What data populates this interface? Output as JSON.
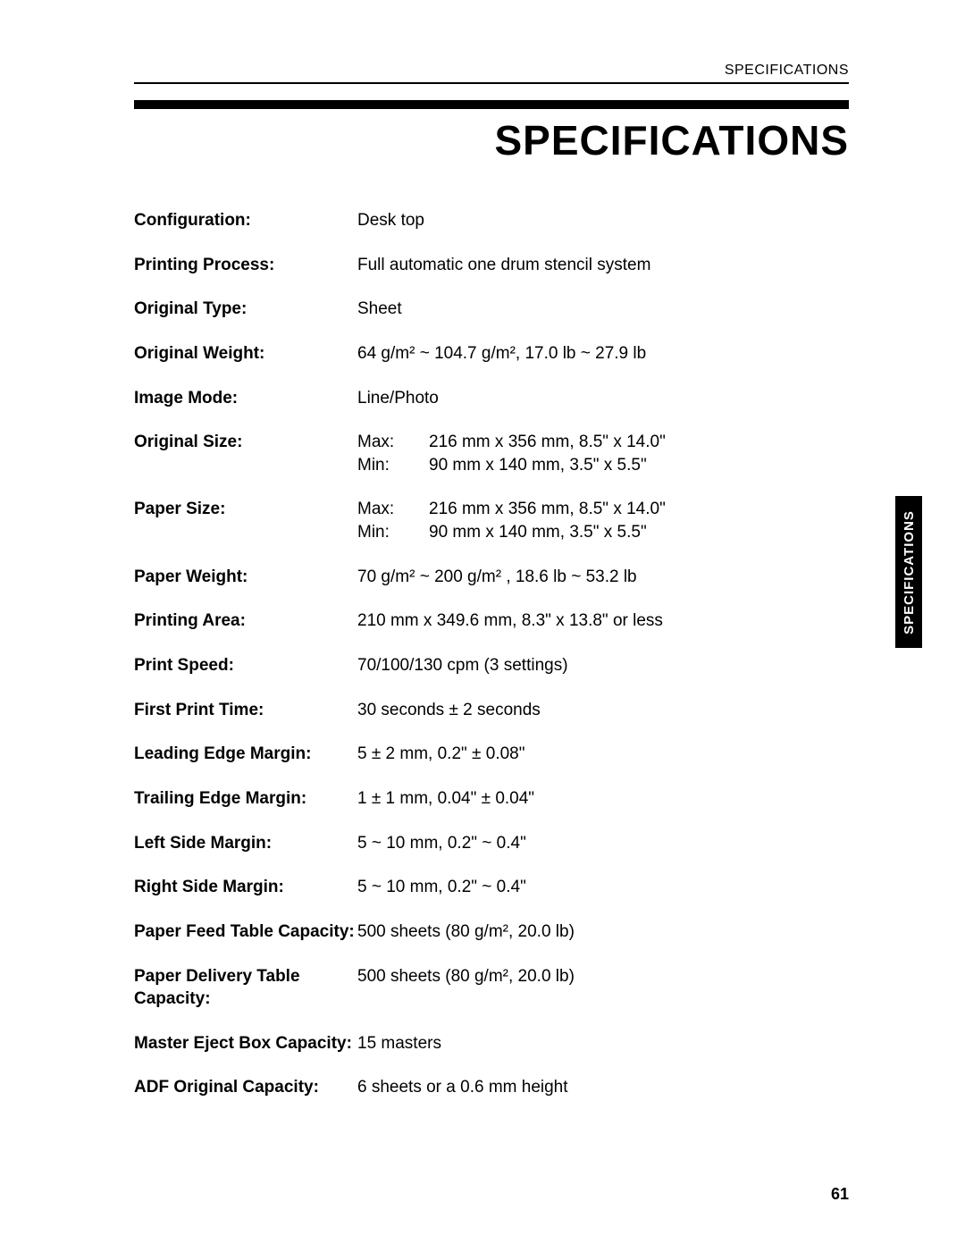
{
  "header": {
    "top_label": "SPECIFICATIONS",
    "title": "SPECIFICATIONS"
  },
  "side_tab": "SPECIFICATIONS",
  "page_number": "61",
  "specs": {
    "configuration": {
      "label": "Configuration:",
      "value": "Desk top"
    },
    "printing_process": {
      "label": "Printing Process:",
      "value": "Full automatic one drum stencil system"
    },
    "original_type": {
      "label": "Original Type:",
      "value": "Sheet"
    },
    "original_weight": {
      "label": "Original Weight:",
      "value": "64 g/m² ~ 104.7 g/m², 17.0 lb ~ 27.9 lb"
    },
    "image_mode": {
      "label": "Image Mode:",
      "value": "Line/Photo"
    },
    "original_size": {
      "label": "Original Size:",
      "max_key": "Max:",
      "max_val": "216 mm x 356 mm, 8.5\" x 14.0\"",
      "min_key": "Min:",
      "min_val": "90 mm x 140 mm, 3.5\" x 5.5\""
    },
    "paper_size": {
      "label": "Paper Size:",
      "max_key": "Max:",
      "max_val": "216 mm x 356 mm, 8.5\" x 14.0\"",
      "min_key": "Min:",
      "min_val": "90 mm x 140 mm, 3.5\" x 5.5\""
    },
    "paper_weight": {
      "label": "Paper Weight:",
      "value": "70 g/m² ~ 200 g/m² , 18.6 lb ~ 53.2 lb"
    },
    "printing_area": {
      "label": "Printing Area:",
      "value": "210 mm x 349.6 mm, 8.3\" x 13.8\" or less"
    },
    "print_speed": {
      "label": "Print Speed:",
      "value": "70/100/130 cpm (3 settings)"
    },
    "first_print_time": {
      "label": "First Print Time:",
      "value": "30 seconds ± 2 seconds"
    },
    "leading_edge_margin": {
      "label": "Leading Edge Margin:",
      "value": "5 ± 2 mm, 0.2\" ± 0.08\""
    },
    "trailing_edge_margin": {
      "label": "Trailing Edge Margin:",
      "value": "1 ± 1 mm, 0.04\" ± 0.04\""
    },
    "left_side_margin": {
      "label": "Left Side Margin:",
      "value": "5 ~ 10 mm, 0.2\" ~ 0.4\""
    },
    "right_side_margin": {
      "label": "Right Side Margin:",
      "value": "5 ~ 10 mm, 0.2\" ~ 0.4\""
    },
    "paper_feed_capacity": {
      "label": "Paper Feed Table Capacity:",
      "value": "500 sheets (80 g/m², 20.0 lb)"
    },
    "paper_delivery_capacity": {
      "label": "Paper Delivery Table Capacity:",
      "value": "500 sheets (80 g/m², 20.0 lb)"
    },
    "master_eject_capacity": {
      "label": "Master Eject Box Capacity:",
      "value": "15 masters"
    },
    "adf_capacity": {
      "label": "ADF Original Capacity:",
      "value": "6 sheets or a 0.6 mm height"
    }
  }
}
